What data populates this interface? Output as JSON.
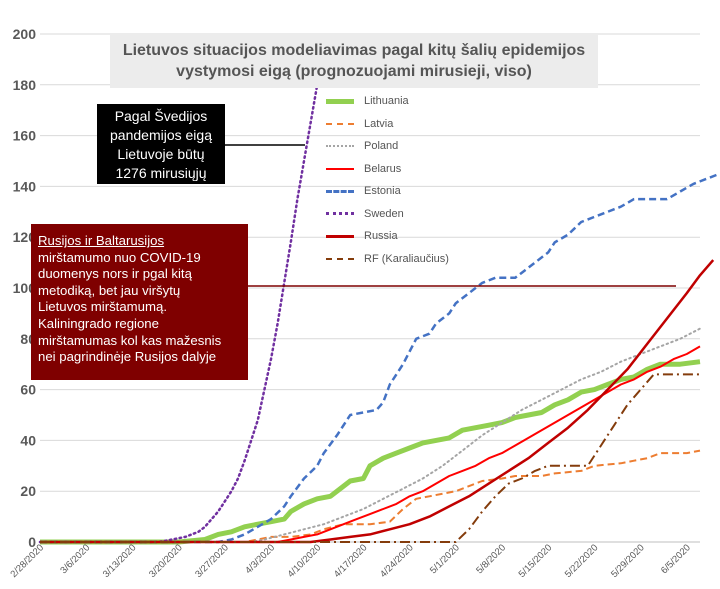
{
  "chart_data": {
    "type": "line",
    "title": "Lietuvos situacijos modeliavimas pagal kitų šalių epidemijos vystymosi eigą (prognozuojami mirusieji, viso)",
    "title_lines": [
      "Lietuvos situacijos modeliavimas pagal kitų šalių epidemijos",
      "vystymosi eigą (prognozuojami mirusieji, viso)"
    ],
    "xlabel": "",
    "ylabel": "",
    "ylim": [
      0,
      200
    ],
    "yticks": [
      0,
      20,
      40,
      60,
      80,
      100,
      120,
      140,
      160,
      180,
      200
    ],
    "ytick_labels": [
      "0",
      "20",
      "40",
      "60",
      "80",
      "100",
      "120",
      "140",
      "160",
      "180",
      "200"
    ],
    "x_days": 100,
    "xtick_days": [
      0,
      7,
      14,
      21,
      28,
      35,
      42,
      49,
      56,
      63,
      70,
      77,
      84,
      91,
      98
    ],
    "xtick_labels": [
      "2/28/2020",
      "3/6/2020",
      "3/13/2020",
      "3/20/2020",
      "3/27/2020",
      "4/3/2020",
      "4/10/2020",
      "4/17/2020",
      "4/24/2020",
      "5/1/2020",
      "5/8/2020",
      "5/15/2020",
      "5/22/2020",
      "5/29/2020",
      "6/5/2020"
    ],
    "grid": "horizontal",
    "legend_position": "top-center",
    "series": [
      {
        "name": "Lithuania",
        "color": "#92d050",
        "style": "solid",
        "width": 5,
        "points": [
          [
            0,
            0
          ],
          [
            21,
            0
          ],
          [
            25,
            1
          ],
          [
            27,
            3
          ],
          [
            29,
            4
          ],
          [
            31,
            6
          ],
          [
            33,
            7
          ],
          [
            35,
            8
          ],
          [
            37,
            9
          ],
          [
            38,
            12
          ],
          [
            40,
            15
          ],
          [
            42,
            17
          ],
          [
            44,
            18
          ],
          [
            46,
            22
          ],
          [
            47,
            24
          ],
          [
            49,
            25
          ],
          [
            50,
            30
          ],
          [
            52,
            33
          ],
          [
            54,
            35
          ],
          [
            56,
            37
          ],
          [
            58,
            39
          ],
          [
            60,
            40
          ],
          [
            62,
            41
          ],
          [
            64,
            44
          ],
          [
            66,
            45
          ],
          [
            68,
            46
          ],
          [
            70,
            47
          ],
          [
            72,
            49
          ],
          [
            74,
            50
          ],
          [
            76,
            51
          ],
          [
            78,
            54
          ],
          [
            80,
            56
          ],
          [
            82,
            59
          ],
          [
            84,
            60
          ],
          [
            86,
            62
          ],
          [
            88,
            64
          ],
          [
            90,
            65
          ],
          [
            92,
            68
          ],
          [
            94,
            70
          ],
          [
            97,
            70
          ],
          [
            100,
            71
          ]
        ]
      },
      {
        "name": "Latvia",
        "color": "#ed7d31",
        "style": "dashed",
        "width": 2,
        "points": [
          [
            0,
            0
          ],
          [
            31,
            0
          ],
          [
            33,
            1
          ],
          [
            35,
            2
          ],
          [
            38,
            2
          ],
          [
            41,
            3
          ],
          [
            43,
            5
          ],
          [
            46,
            7
          ],
          [
            50,
            7
          ],
          [
            53,
            8
          ],
          [
            55,
            13
          ],
          [
            57,
            17
          ],
          [
            59,
            18
          ],
          [
            61,
            19
          ],
          [
            63,
            20
          ],
          [
            67,
            24
          ],
          [
            70,
            25
          ],
          [
            72,
            26
          ],
          [
            76,
            26
          ],
          [
            78,
            27
          ],
          [
            82,
            28
          ],
          [
            84,
            30
          ],
          [
            88,
            31
          ],
          [
            90,
            32
          ],
          [
            92,
            33
          ],
          [
            94,
            35
          ],
          [
            98,
            35
          ],
          [
            100,
            36
          ]
        ]
      },
      {
        "name": "Poland",
        "color": "#a5a5a5",
        "style": "dotted",
        "width": 2,
        "points": [
          [
            0,
            0
          ],
          [
            32,
            0
          ],
          [
            34,
            1
          ],
          [
            37,
            3
          ],
          [
            40,
            5
          ],
          [
            43,
            7
          ],
          [
            46,
            10
          ],
          [
            49,
            13
          ],
          [
            52,
            17
          ],
          [
            55,
            21
          ],
          [
            58,
            25
          ],
          [
            61,
            30
          ],
          [
            64,
            36
          ],
          [
            67,
            42
          ],
          [
            70,
            47
          ],
          [
            73,
            52
          ],
          [
            76,
            56
          ],
          [
            79,
            60
          ],
          [
            82,
            64
          ],
          [
            85,
            67
          ],
          [
            88,
            71
          ],
          [
            91,
            74
          ],
          [
            94,
            77
          ],
          [
            97,
            80
          ],
          [
            100,
            84
          ]
        ]
      },
      {
        "name": "Belarus",
        "color": "#ff0000",
        "style": "solid",
        "width": 2,
        "points": [
          [
            0,
            0
          ],
          [
            36,
            0
          ],
          [
            38,
            1
          ],
          [
            40,
            2
          ],
          [
            42,
            3
          ],
          [
            44,
            5
          ],
          [
            46,
            7
          ],
          [
            48,
            9
          ],
          [
            50,
            11
          ],
          [
            52,
            13
          ],
          [
            54,
            15
          ],
          [
            56,
            18
          ],
          [
            58,
            20
          ],
          [
            60,
            23
          ],
          [
            62,
            26
          ],
          [
            64,
            28
          ],
          [
            66,
            30
          ],
          [
            68,
            33
          ],
          [
            70,
            35
          ],
          [
            72,
            38
          ],
          [
            74,
            41
          ],
          [
            76,
            44
          ],
          [
            78,
            47
          ],
          [
            80,
            50
          ],
          [
            82,
            53
          ],
          [
            84,
            56
          ],
          [
            86,
            59
          ],
          [
            88,
            62
          ],
          [
            90,
            64
          ],
          [
            92,
            67
          ],
          [
            94,
            69
          ],
          [
            96,
            72
          ],
          [
            98,
            74
          ],
          [
            100,
            77
          ]
        ]
      },
      {
        "name": "Estonia",
        "color": "#4472c4",
        "style": "dashed",
        "width": 2.5,
        "points": [
          [
            0,
            0
          ],
          [
            27,
            0
          ],
          [
            29,
            1
          ],
          [
            31,
            3
          ],
          [
            33,
            6
          ],
          [
            35,
            9
          ],
          [
            37,
            14
          ],
          [
            38,
            18
          ],
          [
            40,
            25
          ],
          [
            42,
            30
          ],
          [
            43,
            35
          ],
          [
            45,
            42
          ],
          [
            47,
            50
          ],
          [
            51,
            52
          ],
          [
            52,
            55
          ],
          [
            53,
            62
          ],
          [
            55,
            70
          ],
          [
            56,
            75
          ],
          [
            57,
            80
          ],
          [
            59,
            82
          ],
          [
            60,
            86
          ],
          [
            62,
            90
          ],
          [
            63,
            94
          ],
          [
            65,
            98
          ],
          [
            67,
            102
          ],
          [
            69,
            104
          ],
          [
            72,
            104
          ],
          [
            74,
            108
          ],
          [
            75,
            110
          ],
          [
            77,
            114
          ],
          [
            78,
            118
          ],
          [
            80,
            121
          ],
          [
            82,
            126
          ],
          [
            84,
            128
          ],
          [
            86,
            130
          ],
          [
            88,
            132
          ],
          [
            90,
            135
          ],
          [
            95,
            135
          ],
          [
            97,
            138
          ],
          [
            99,
            141
          ],
          [
            101,
            143
          ],
          [
            103,
            145
          ],
          [
            105,
            145
          ]
        ]
      },
      {
        "name": "Sweden",
        "color": "#7030a0",
        "style": "dotted",
        "width": 2.5,
        "points": [
          [
            0,
            0
          ],
          [
            18,
            0
          ],
          [
            20,
            1
          ],
          [
            22,
            2
          ],
          [
            23,
            3
          ],
          [
            24,
            4
          ],
          [
            25,
            6
          ],
          [
            26,
            9
          ],
          [
            27,
            12
          ],
          [
            28,
            16
          ],
          [
            29,
            20
          ],
          [
            30,
            25
          ],
          [
            31,
            32
          ],
          [
            32,
            40
          ],
          [
            33,
            48
          ],
          [
            34,
            60
          ],
          [
            35,
            72
          ],
          [
            36,
            86
          ],
          [
            37,
            102
          ],
          [
            38,
            118
          ],
          [
            39,
            135
          ],
          [
            40,
            150
          ],
          [
            41,
            165
          ],
          [
            42,
            180
          ],
          [
            42.5,
            195
          ]
        ]
      },
      {
        "name": "Russia",
        "color": "#c00000",
        "style": "solid",
        "width": 2.5,
        "points": [
          [
            0,
            0
          ],
          [
            41,
            0
          ],
          [
            44,
            1
          ],
          [
            47,
            2
          ],
          [
            50,
            3
          ],
          [
            53,
            5
          ],
          [
            56,
            7
          ],
          [
            59,
            10
          ],
          [
            62,
            14
          ],
          [
            65,
            18
          ],
          [
            68,
            23
          ],
          [
            71,
            28
          ],
          [
            74,
            33
          ],
          [
            77,
            39
          ],
          [
            80,
            45
          ],
          [
            83,
            52
          ],
          [
            86,
            60
          ],
          [
            89,
            68
          ],
          [
            92,
            78
          ],
          [
            95,
            88
          ],
          [
            98,
            98
          ],
          [
            100,
            105
          ],
          [
            102,
            111
          ]
        ]
      },
      {
        "name": "RF (Karaliaučius)",
        "color": "#843c0c",
        "style": "dashdot",
        "width": 2,
        "points": [
          [
            0,
            0
          ],
          [
            54,
            0
          ],
          [
            57,
            0
          ],
          [
            60,
            0
          ],
          [
            63,
            0
          ],
          [
            65,
            5
          ],
          [
            67,
            12
          ],
          [
            69,
            18
          ],
          [
            71,
            23
          ],
          [
            73,
            25
          ],
          [
            75,
            28
          ],
          [
            77,
            30
          ],
          [
            83,
            30
          ],
          [
            85,
            38
          ],
          [
            87,
            46
          ],
          [
            89,
            54
          ],
          [
            91,
            60
          ],
          [
            93,
            66
          ],
          [
            100,
            66
          ]
        ]
      }
    ]
  },
  "annotations": {
    "sweden_note": [
      "Pagal Švedijos",
      "pandemijos eigą",
      "Lietuvoje būtų",
      "1276 mirusiųjų"
    ],
    "russia_note": [
      "Rusijos ir Baltarusijos",
      "mirštamumo nuo COVID-19",
      "duomenys  nors ir pgal kitą",
      "metodiką, bet jau viršytų",
      "Lietuvos mirštamumą.",
      "Kaliningrado regione",
      "mirštamumas kol kas mažesnis",
      "nei pagrindinėje Rusijos dalyje"
    ]
  }
}
